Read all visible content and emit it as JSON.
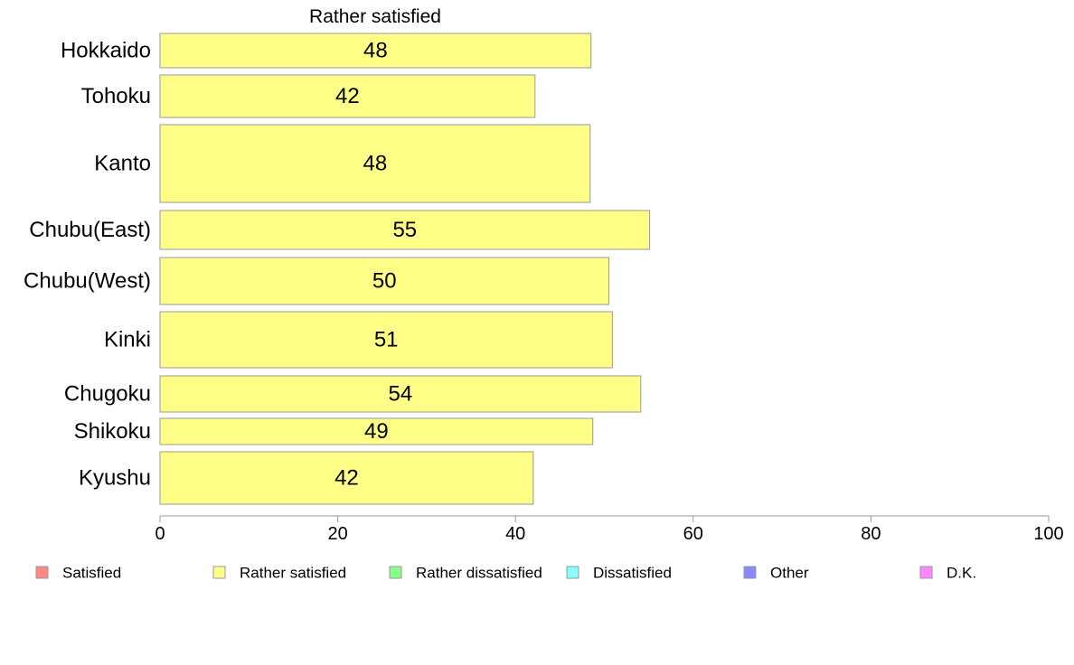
{
  "chart_data": {
    "type": "bar",
    "orientation": "horizontal",
    "title": "Rather satisfied",
    "categories": [
      "Hokkaido",
      "Tohoku",
      "Kanto",
      "Chubu(East)",
      "Chubu(West)",
      "Kinki",
      "Chugoku",
      "Shikoku",
      "Kyushu"
    ],
    "values": [
      48,
      42,
      48,
      55,
      50,
      51,
      54,
      49,
      42
    ],
    "bar_values_exact": [
      48.5,
      42.2,
      48.4,
      55.1,
      50.5,
      50.9,
      54.1,
      48.7,
      42.0
    ],
    "xlim": [
      0,
      100
    ],
    "xticks": [
      "0",
      "20",
      "40",
      "60",
      "80",
      "100"
    ],
    "xlabel": "",
    "ylabel": "",
    "bar_color": "#ffff88",
    "bar_stroke": "#999999",
    "grid": false,
    "legend_position": "bottom",
    "legend": [
      {
        "label": "Satisfied",
        "color": "#ff8888"
      },
      {
        "label": "Rather satisfied",
        "color": "#ffff88"
      },
      {
        "label": "Rather dissatisfied",
        "color": "#88ff88"
      },
      {
        "label": "Dissatisfied",
        "color": "#88ffff"
      },
      {
        "label": "Other",
        "color": "#8888ff"
      },
      {
        "label": "D.K.",
        "color": "#ff88ff"
      }
    ]
  }
}
